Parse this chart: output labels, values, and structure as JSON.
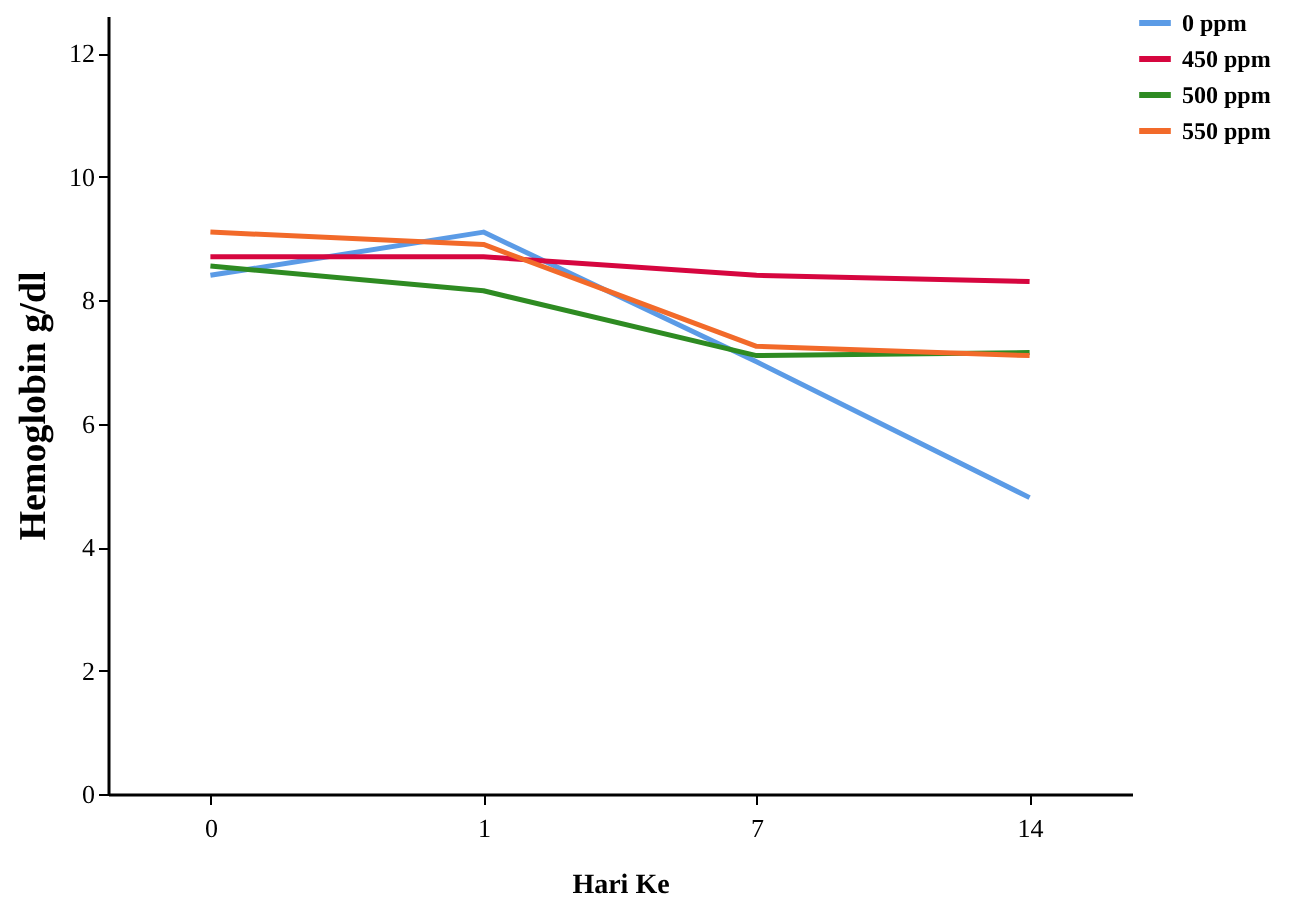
{
  "chart_data": {
    "type": "line",
    "xlabel": "Hari Ke",
    "ylabel": "Hemoglobin g/dl",
    "categories": [
      "0",
      "1",
      "7",
      "14"
    ],
    "series": [
      {
        "name": "0 ppm",
        "color": "#5b9be6",
        "values": [
          8.4,
          9.1,
          7.0,
          4.8
        ]
      },
      {
        "name": "450 ppm",
        "color": "#d6063f",
        "values": [
          8.7,
          8.7,
          8.4,
          8.3
        ]
      },
      {
        "name": "500 ppm",
        "color": "#2e8b22",
        "values": [
          8.55,
          8.15,
          7.1,
          7.15
        ]
      },
      {
        "name": "550 ppm",
        "color": "#f26a2a",
        "values": [
          9.1,
          8.9,
          7.25,
          7.1
        ]
      }
    ],
    "ylim": [
      0,
      12.6
    ],
    "yticks": [
      0,
      2,
      4,
      6,
      8,
      10,
      12
    ],
    "grid": false,
    "legend": "top right",
    "marker": "none",
    "line_style": "solid"
  }
}
